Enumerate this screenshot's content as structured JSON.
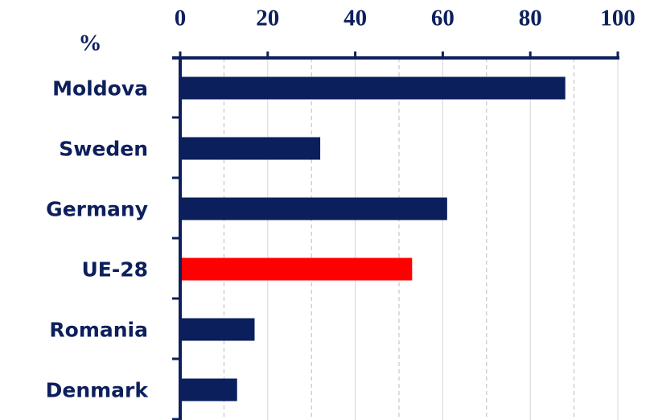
{
  "chart_data": {
    "type": "bar",
    "orientation": "horizontal",
    "ylabel": "%",
    "categories": [
      "Moldova",
      "Sweden",
      "Germany",
      "UE-28",
      "Romania",
      "Denmark"
    ],
    "values": [
      88,
      32,
      61,
      53,
      17,
      13
    ],
    "colors": [
      "#0a1f5c",
      "#0a1f5c",
      "#0a1f5c",
      "#ff0000",
      "#0a1f5c",
      "#0a1f5c"
    ],
    "xlim": [
      0,
      100
    ],
    "xticks": [
      0,
      20,
      40,
      60,
      80,
      100
    ],
    "minor_xticks": [
      10,
      30,
      50,
      70,
      90
    ],
    "grid": true
  }
}
